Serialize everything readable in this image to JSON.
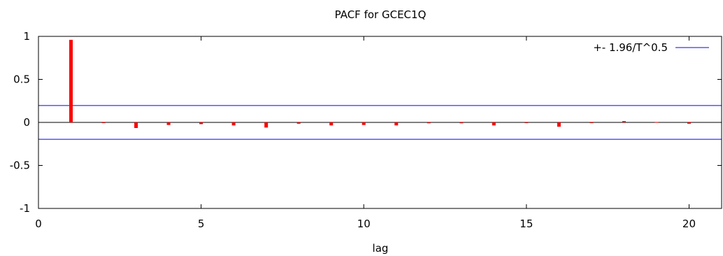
{
  "chart_data": {
    "type": "bar",
    "title": "PACF for GCEC1Q",
    "xlabel": "lag",
    "ylabel": "",
    "xlim": [
      0,
      21
    ],
    "ylim": [
      -1,
      1
    ],
    "x_ticks": [
      0,
      5,
      10,
      15,
      20
    ],
    "y_ticks": [
      1,
      0.5,
      0,
      -0.5,
      -1
    ],
    "y_tick_labels": [
      "1",
      "0.5",
      "0",
      "-0.5",
      "-1"
    ],
    "grid": false,
    "legend_position": "top-right",
    "bar_color": "#ff0000",
    "band_color": "#0000ff",
    "lags": [
      1,
      2,
      3,
      4,
      5,
      6,
      7,
      8,
      9,
      10,
      11,
      12,
      13,
      14,
      15,
      16,
      17,
      18,
      19,
      20
    ],
    "values": [
      0.96,
      -0.005,
      -0.065,
      -0.03,
      -0.02,
      -0.035,
      -0.06,
      -0.015,
      -0.035,
      -0.03,
      -0.035,
      -0.01,
      -0.01,
      -0.035,
      -0.005,
      -0.05,
      -0.005,
      0.015,
      0.005,
      -0.015
    ],
    "bands": {
      "name": "+- 1.96/T^0.5",
      "upper": 0.196,
      "lower": -0.196
    }
  }
}
